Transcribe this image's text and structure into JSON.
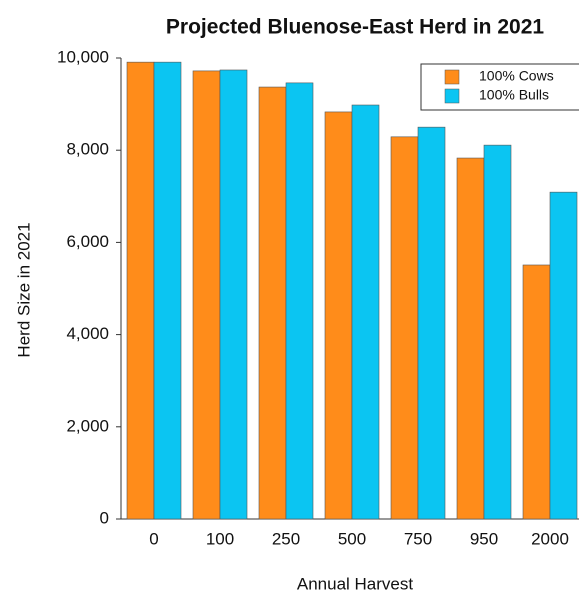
{
  "chart_data": {
    "type": "bar",
    "title": "Projected Bluenose-East Herd in 2021",
    "x_label": "Annual Harvest",
    "y_label": "Herd Size in 2021",
    "categories": [
      "0",
      "100",
      "250",
      "500",
      "750",
      "950",
      "2000"
    ],
    "series": [
      {
        "name": "100% Cows",
        "color": "#ff8c1a",
        "values": [
          9910,
          9720,
          9370,
          8830,
          8290,
          7830,
          5510
        ]
      },
      {
        "name": "100% Bulls",
        "color": "#0bc5f2",
        "values": [
          9910,
          9740,
          9460,
          8980,
          8500,
          8110,
          7090
        ]
      }
    ],
    "ylim": [
      0,
      10000
    ],
    "yticks": [
      0,
      {
        "value": 2000,
        "label": "2,000"
      },
      {
        "value": 4000,
        "label": "4,000"
      },
      {
        "value": 6000,
        "label": "6,000"
      },
      {
        "value": 8000,
        "label": "8,000"
      },
      {
        "value": 10000,
        "label": "10,000"
      }
    ],
    "legend": "top-right"
  }
}
